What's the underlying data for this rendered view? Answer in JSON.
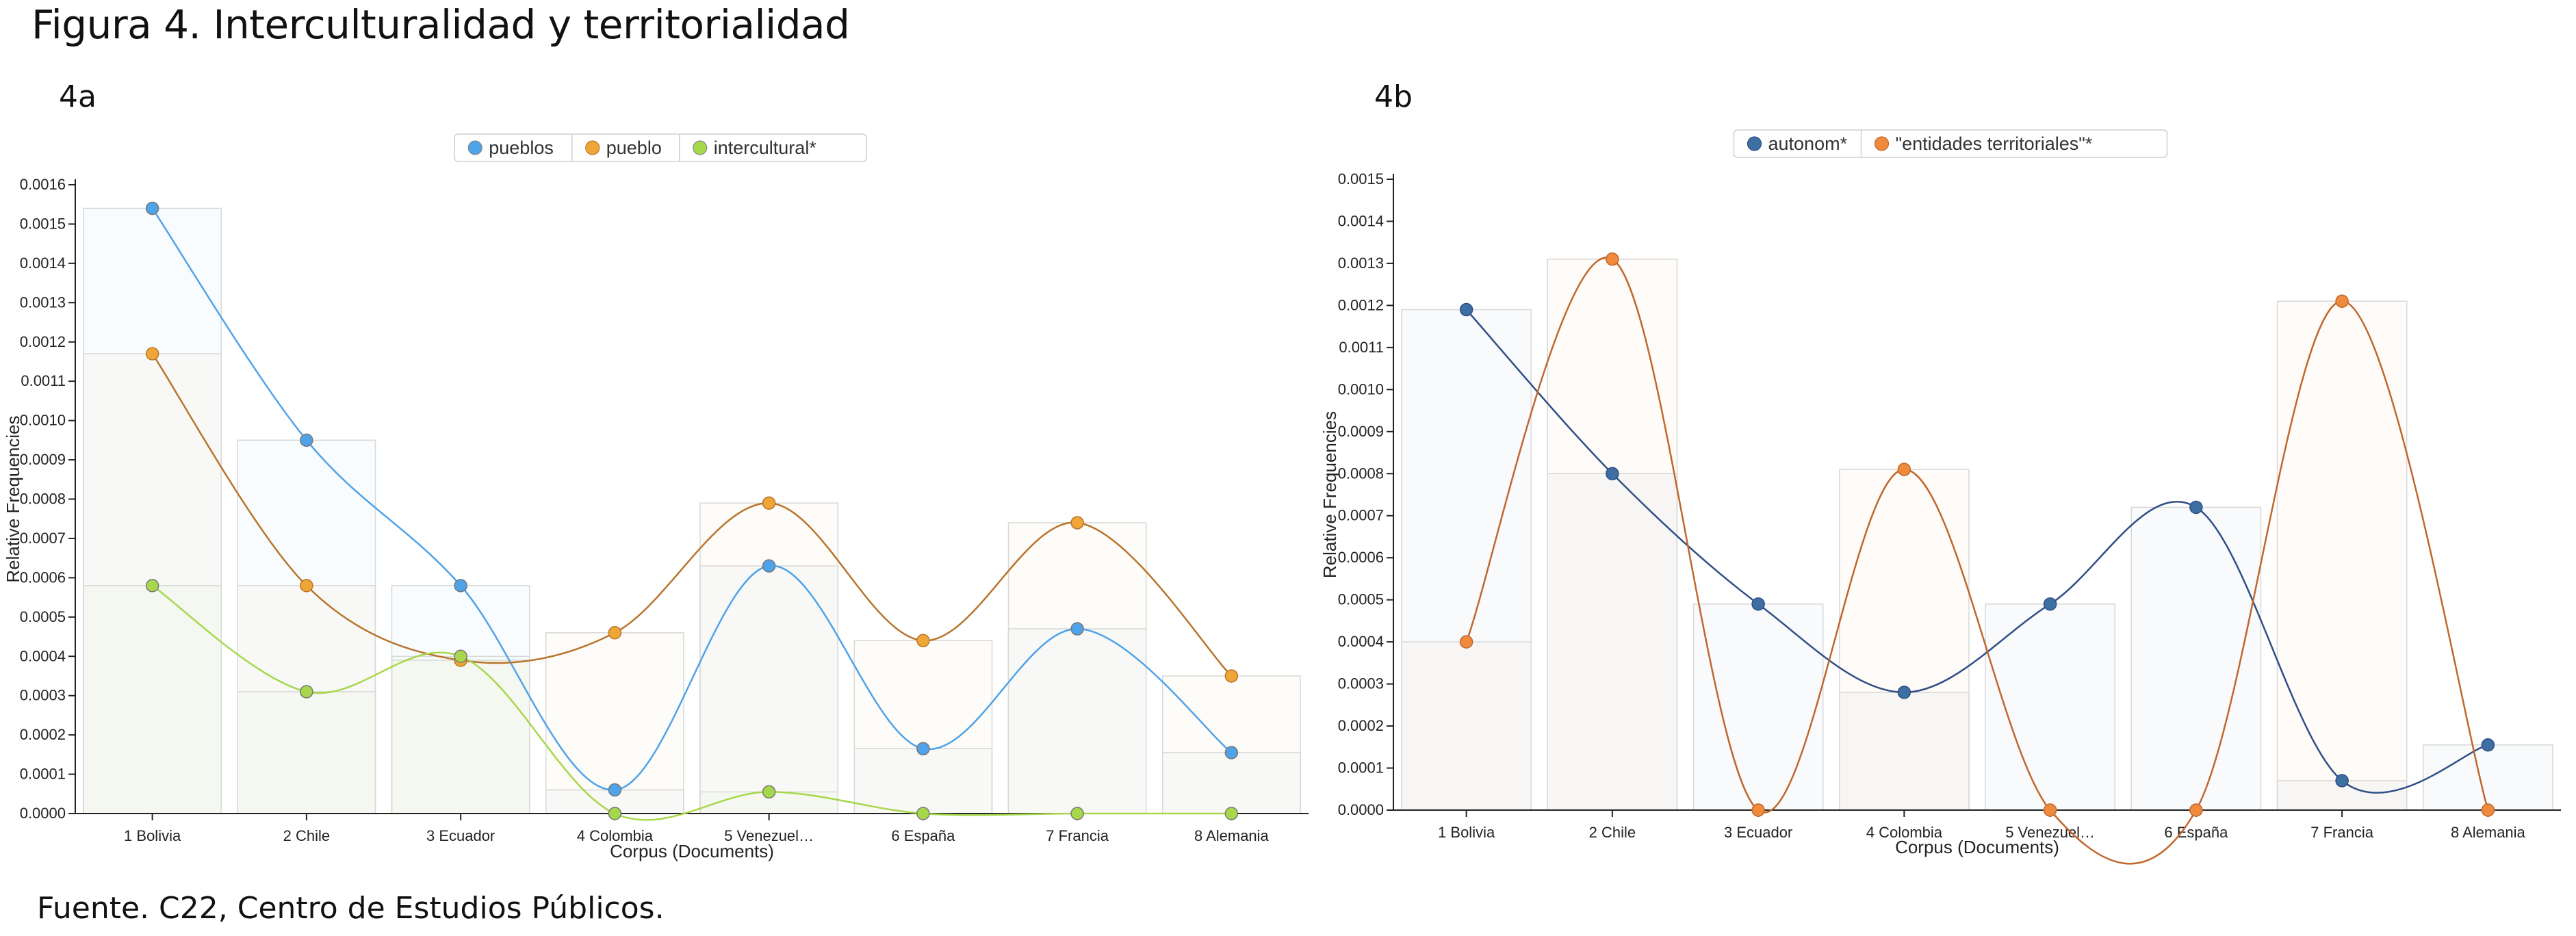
{
  "figure": {
    "title": "Figura 4. Interculturalidad y territorialidad",
    "source": "Fuente. C22, Centro de Estudios Públicos."
  },
  "chart_data": [
    {
      "panel_label": "4a",
      "type": "line",
      "categories": [
        "1 Bolivia",
        "2 Chile",
        "3 Ecuador",
        "4 Colombia",
        "5 Venezuel…",
        "6 España",
        "7 Francia",
        "8 Alemania"
      ],
      "series": [
        {
          "name": "pueblos",
          "color": "#4fa3e9",
          "values": [
            0.00154,
            0.00095,
            0.00058,
            6e-05,
            0.00063,
            0.000165,
            0.00047,
            0.000155
          ]
        },
        {
          "name": "pueblo",
          "color": "#f0a637",
          "line_color": "#b8742c",
          "values": [
            0.00117,
            0.00058,
            0.00039,
            0.00046,
            0.00079,
            0.00044,
            0.00074,
            0.00035
          ]
        },
        {
          "name": "intercultural*",
          "color": "#a7d74a",
          "values": [
            0.00058,
            0.00031,
            0.0004,
            0.0,
            5.5e-05,
            0.0,
            0.0,
            0.0
          ]
        }
      ],
      "xlabel": "Corpus (Documents)",
      "ylabel": "Relative Frequencies",
      "ylim": [
        0,
        0.0016
      ],
      "yticks": [
        "0.0000",
        "0.0001",
        "0.0002",
        "0.0003",
        "0.0004",
        "0.0005",
        "0.0006",
        "0.0007",
        "0.0008",
        "0.0009",
        "0.0010",
        "0.0011",
        "0.0012",
        "0.0013",
        "0.0014",
        "0.0015",
        "0.0016"
      ],
      "legend_position": "top-center",
      "grid": false
    },
    {
      "panel_label": "4b",
      "type": "line",
      "categories": [
        "1 Bolivia",
        "2 Chile",
        "3 Ecuador",
        "4 Colombia",
        "5 Venezuel…",
        "6 España",
        "7 Francia",
        "8 Alemania"
      ],
      "series": [
        {
          "name": "autonom*",
          "color": "#3e6fa3",
          "line_color": "#2f4f86",
          "values": [
            0.00119,
            0.0008,
            0.00049,
            0.00028,
            0.00049,
            0.00072,
            7e-05,
            0.000155
          ]
        },
        {
          "name": "\"entidades territoriales\"*",
          "color": "#f08a3c",
          "line_color": "#c0672c",
          "values": [
            0.0004,
            0.00131,
            0.0,
            0.00081,
            0.0,
            0.0,
            0.00121,
            0.0
          ]
        }
      ],
      "xlabel": "Corpus (Documents)",
      "ylabel": "Relative Frequencies",
      "ylim": [
        0,
        0.0015
      ],
      "yticks": [
        "0.0000",
        "0.0001",
        "0.0002",
        "0.0003",
        "0.0004",
        "0.0005",
        "0.0006",
        "0.0007",
        "0.0008",
        "0.0009",
        "0.0010",
        "0.0011",
        "0.0012",
        "0.0013",
        "0.0014",
        "0.0015"
      ],
      "legend_position": "top-center",
      "grid": false
    }
  ]
}
